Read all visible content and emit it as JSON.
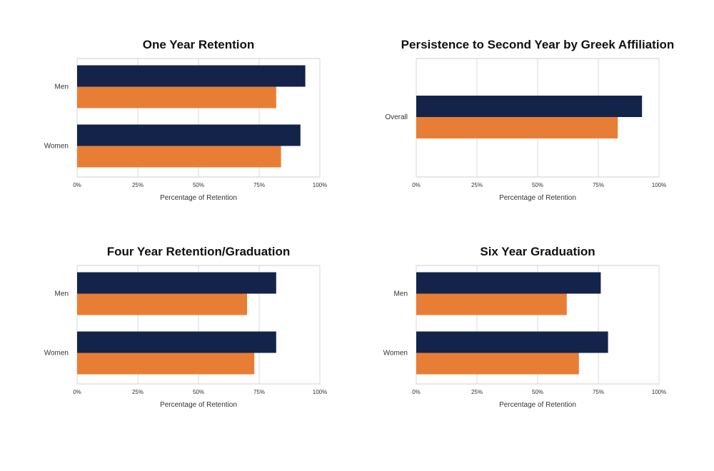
{
  "colors": {
    "series_dark": "#14234a",
    "series_orange": "#e87e35"
  },
  "chart_data": [
    {
      "type": "bar",
      "orientation": "horizontal",
      "title": "One Year Retention",
      "categories": [
        "Men",
        "Women"
      ],
      "series": [
        {
          "values": [
            94,
            92
          ]
        },
        {
          "values": [
            82,
            84
          ]
        }
      ],
      "xlabel": "Percentage of Retention",
      "ylabel": "",
      "xlim": [
        0,
        100
      ],
      "ticks": [
        "0%",
        "25%",
        "50%",
        "75%",
        "100%"
      ],
      "grid": true
    },
    {
      "type": "bar",
      "orientation": "horizontal",
      "title": "Persistence to Second Year by Greek Affiliation",
      "categories": [
        "Overall"
      ],
      "series": [
        {
          "values": [
            93
          ]
        },
        {
          "values": [
            83
          ]
        }
      ],
      "xlabel": "Percentage of Retention",
      "ylabel": "",
      "xlim": [
        0,
        100
      ],
      "ticks": [
        "0%",
        "25%",
        "50%",
        "75%",
        "100%"
      ],
      "grid": true
    },
    {
      "type": "bar",
      "orientation": "horizontal",
      "title": "Four Year Retention/Graduation",
      "categories": [
        "Men",
        "Women"
      ],
      "series": [
        {
          "values": [
            82,
            82
          ]
        },
        {
          "values": [
            70,
            73
          ]
        }
      ],
      "xlabel": "Percentage of Retention",
      "ylabel": "",
      "xlim": [
        0,
        100
      ],
      "ticks": [
        "0%",
        "25%",
        "50%",
        "75%",
        "100%"
      ],
      "grid": true
    },
    {
      "type": "bar",
      "orientation": "horizontal",
      "title": "Six Year Graduation",
      "categories": [
        "Men",
        "Women"
      ],
      "series": [
        {
          "values": [
            76,
            79
          ]
        },
        {
          "values": [
            62,
            67
          ]
        }
      ],
      "xlabel": "Percentage of Retention",
      "ylabel": "",
      "xlim": [
        0,
        100
      ],
      "ticks": [
        "0%",
        "25%",
        "50%",
        "75%",
        "100%"
      ],
      "grid": true
    }
  ]
}
